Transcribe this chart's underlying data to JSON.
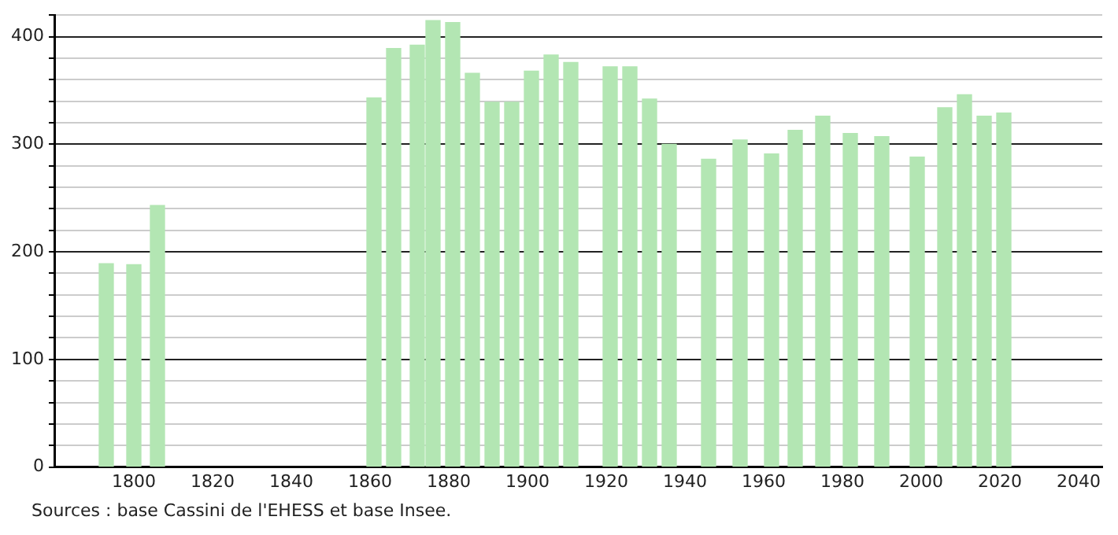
{
  "chart_data": {
    "type": "bar",
    "x": [
      1793,
      1800,
      1806,
      1861,
      1866,
      1872,
      1876,
      1881,
      1886,
      1891,
      1896,
      1901,
      1906,
      1911,
      1921,
      1926,
      1931,
      1936,
      1946,
      1954,
      1962,
      1968,
      1975,
      1982,
      1990,
      1999,
      2006,
      2011,
      2016,
      2021
    ],
    "values": [
      189,
      188,
      243,
      343,
      389,
      392,
      415,
      413,
      366,
      339,
      339,
      368,
      383,
      376,
      372,
      372,
      342,
      300,
      286,
      304,
      291,
      313,
      326,
      310,
      307,
      288,
      334,
      346,
      326,
      329
    ],
    "color": "#b3e6b3",
    "xlim": [
      1780,
      2046
    ],
    "xticks": [
      1800,
      1820,
      1840,
      1860,
      1880,
      1900,
      1920,
      1940,
      1960,
      1980,
      2000,
      2020,
      2040
    ],
    "ylim": [
      0,
      420
    ],
    "yticks": [
      0,
      {
        "value": 20,
        "label": null
      },
      {
        "value": 40,
        "label": null
      },
      {
        "value": 60,
        "label": null
      },
      {
        "value": 80,
        "label": null
      },
      100,
      {
        "value": 120,
        "label": null
      },
      {
        "value": 140,
        "label": null
      },
      {
        "value": 160,
        "label": null
      },
      {
        "value": 180,
        "label": null
      },
      200,
      {
        "value": 220,
        "label": null
      },
      {
        "value": 240,
        "label": null
      },
      {
        "value": 260,
        "label": null
      },
      {
        "value": 280,
        "label": null
      },
      300,
      {
        "value": 320,
        "label": null
      },
      {
        "value": 340,
        "label": null
      },
      {
        "value": 360,
        "label": null
      },
      {
        "value": 380,
        "label": null
      },
      400,
      {
        "value": 420,
        "label": null
      }
    ],
    "grid": "y",
    "annotations": [
      "Sources : base Cassini de l'EHESS et base Insee."
    ]
  }
}
